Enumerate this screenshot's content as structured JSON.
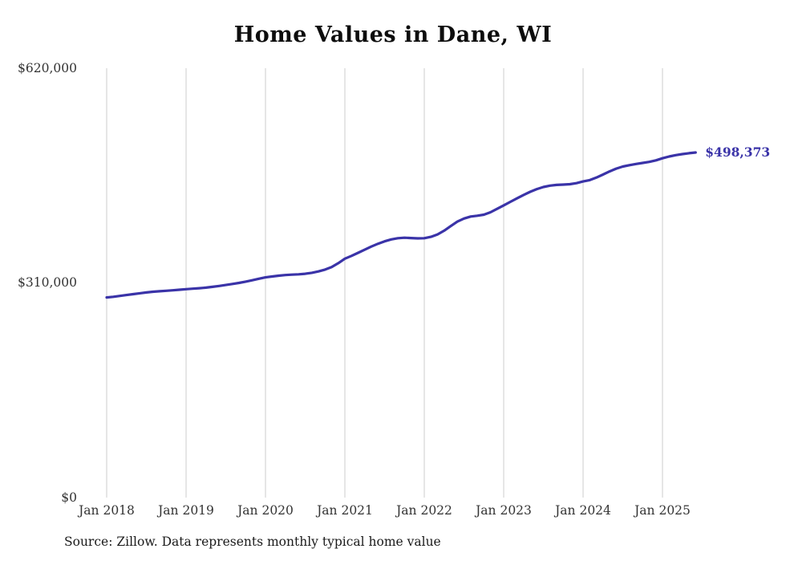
{
  "title": "Home Values in Dane, WI",
  "source_note": "Source: Zillow. Data represents monthly typical home value",
  "chart_data": {
    "type": "line",
    "title": "Home Values in Dane, WI",
    "xlabel": "",
    "ylabel": "",
    "ylim": [
      0,
      620000
    ],
    "y_tick_labels": [
      "$620,000",
      "$310,000",
      "$0"
    ],
    "y_tick_values": [
      620000,
      310000,
      0
    ],
    "x_tick_labels": [
      "Jan 2018",
      "Jan 2019",
      "Jan 2020",
      "Jan 2021",
      "Jan 2022",
      "Jan 2023",
      "Jan 2024",
      "Jan 2025"
    ],
    "grid": "vertical-only",
    "legend": "none",
    "line_color": "#3a33a8",
    "x_start": "2018-01",
    "x_end": "2025-06",
    "x_interval": "monthly",
    "end_label": "$498,373",
    "end_value": 498373,
    "series": [
      {
        "name": "Typical home value",
        "values": [
          289000,
          290000,
          291200,
          292500,
          293800,
          295000,
          296200,
          297200,
          298000,
          298700,
          299300,
          300200,
          301000,
          301600,
          302300,
          303200,
          304300,
          305600,
          307000,
          308500,
          310000,
          311800,
          313800,
          316000,
          318000,
          319300,
          320400,
          321300,
          321900,
          322400,
          323200,
          324600,
          326600,
          329200,
          332800,
          338500,
          345000,
          349000,
          353500,
          358000,
          362500,
          366500,
          370000,
          372800,
          374500,
          375200,
          374800,
          374300,
          374500,
          376500,
          380000,
          385500,
          392000,
          398500,
          403000,
          405800,
          407000,
          408500,
          412000,
          417000,
          422000,
          427000,
          432000,
          437000,
          441500,
          445500,
          448500,
          450500,
          451500,
          452000,
          452500,
          454000,
          456500,
          458500,
          462000,
          466500,
          471000,
          475000,
          478000,
          480000,
          481800,
          483200,
          484800,
          487000,
          490000,
          492500,
          494500,
          496000,
          497300,
          498373
        ]
      }
    ]
  }
}
